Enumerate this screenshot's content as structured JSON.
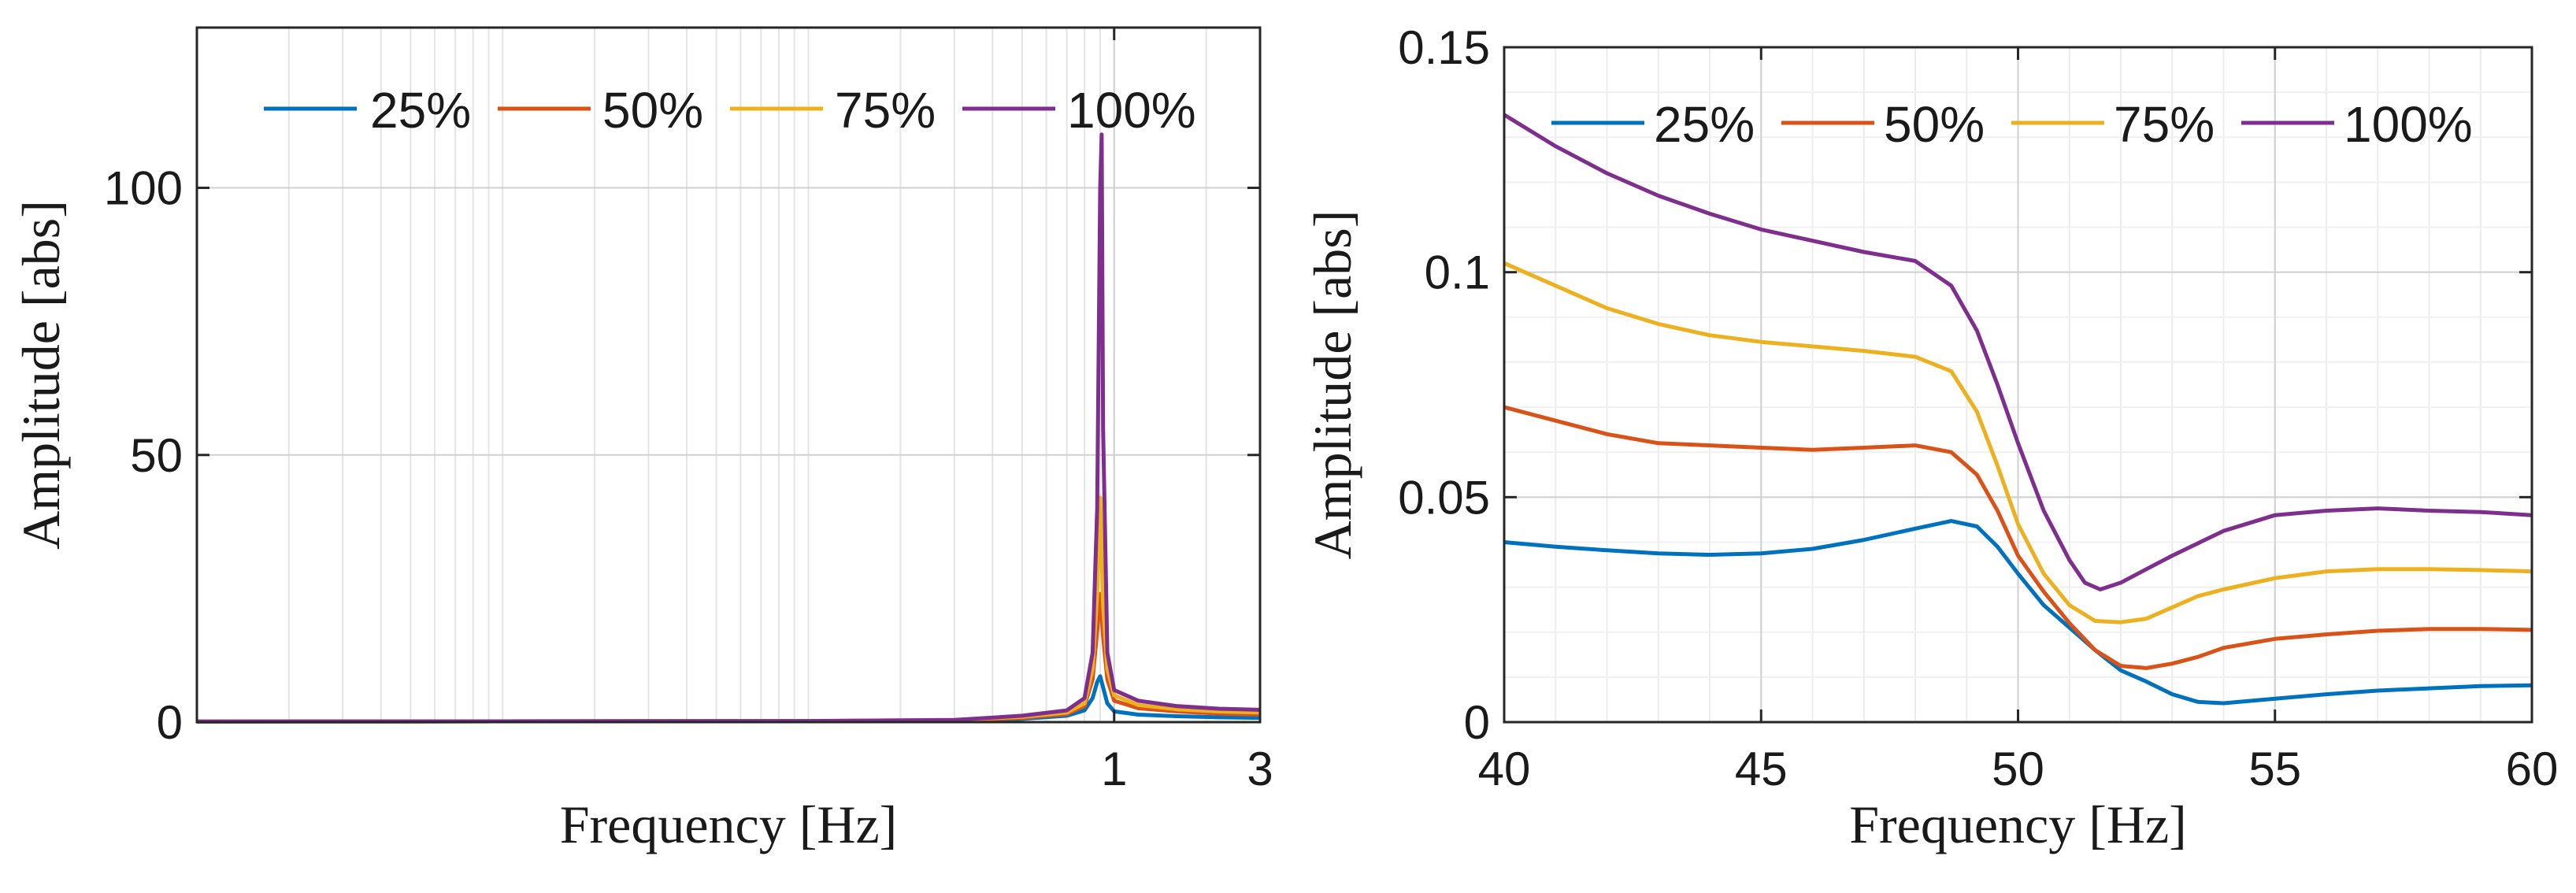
{
  "chart_data": [
    {
      "type": "line",
      "xscale": "log",
      "xlim": [
        0.001,
        3
      ],
      "ylim": [
        0,
        130
      ],
      "xticks": [
        1,
        3
      ],
      "xtick_labels": [
        "1",
        "3"
      ],
      "yticks": [
        0,
        50,
        100
      ],
      "ytick_labels": [
        "0",
        "50",
        "100"
      ],
      "xlabel": "Frequency [Hz]",
      "ylabel": "Amplitude [abs]",
      "grid": true,
      "legend_position": "top",
      "series": [
        {
          "name": "25%",
          "color": "#0072BD",
          "x": [
            0.001,
            0.1,
            0.3,
            0.5,
            0.7,
            0.8,
            0.85,
            0.88,
            0.9,
            0.92,
            0.95,
            1.0,
            1.2,
            1.6,
            2.2,
            3.0
          ],
          "y": [
            0.1,
            0.2,
            0.3,
            0.6,
            1.2,
            2.2,
            4.5,
            7.5,
            8.6,
            6.5,
            3.5,
            2.0,
            1.4,
            1.1,
            0.9,
            0.8
          ]
        },
        {
          "name": "50%",
          "color": "#D95319",
          "x": [
            0.001,
            0.1,
            0.3,
            0.5,
            0.7,
            0.8,
            0.85,
            0.88,
            0.9,
            0.92,
            0.95,
            1.0,
            1.2,
            1.6,
            2.2,
            3.0
          ],
          "y": [
            0.1,
            0.2,
            0.3,
            0.8,
            1.5,
            3.0,
            8.0,
            17.0,
            24.0,
            16.0,
            8.0,
            4.0,
            2.6,
            2.0,
            1.6,
            1.4
          ]
        },
        {
          "name": "75%",
          "color": "#EDB120",
          "x": [
            0.001,
            0.1,
            0.3,
            0.5,
            0.7,
            0.8,
            0.85,
            0.88,
            0.9,
            0.92,
            0.95,
            1.0,
            1.2,
            1.6,
            2.2,
            3.0
          ],
          "y": [
            0.1,
            0.2,
            0.4,
            1.0,
            1.8,
            3.5,
            10.0,
            24.0,
            42.0,
            22.0,
            10.0,
            5.0,
            3.2,
            2.4,
            2.0,
            1.8
          ]
        },
        {
          "name": "100%",
          "color": "#7E2F8E",
          "x": [
            0.001,
            0.1,
            0.3,
            0.5,
            0.7,
            0.8,
            0.85,
            0.88,
            0.9,
            0.91,
            0.92,
            0.95,
            1.0,
            1.2,
            1.6,
            2.2,
            3.0
          ],
          "y": [
            0.1,
            0.2,
            0.4,
            1.2,
            2.2,
            4.5,
            13.0,
            40.0,
            100.0,
            110.0,
            55.0,
            13.0,
            6.0,
            4.0,
            3.0,
            2.5,
            2.3
          ]
        }
      ]
    },
    {
      "type": "line",
      "xscale": "linear",
      "xlim": [
        40,
        60
      ],
      "ylim": [
        0,
        0.15
      ],
      "xticks": [
        40,
        45,
        50,
        55,
        60
      ],
      "xtick_labels": [
        "40",
        "45",
        "50",
        "55",
        "60"
      ],
      "yticks": [
        0,
        0.05,
        0.1,
        0.15
      ],
      "ytick_labels": [
        "0",
        "0.05",
        "0.1",
        "0.15"
      ],
      "xlabel": "Frequency [Hz]",
      "ylabel": "Amplitude [abs]",
      "grid": true,
      "legend_position": "top",
      "series": [
        {
          "name": "25%",
          "color": "#0072BD",
          "x": [
            40,
            41,
            42,
            43,
            44,
            45,
            46,
            47,
            48,
            48.7,
            49.2,
            49.6,
            50,
            50.5,
            51,
            51.5,
            52,
            52.5,
            53,
            53.5,
            54,
            55,
            56,
            57,
            58,
            59,
            60
          ],
          "y": [
            0.04,
            0.039,
            0.0382,
            0.0375,
            0.0372,
            0.0375,
            0.0385,
            0.0405,
            0.043,
            0.0447,
            0.0435,
            0.039,
            0.033,
            0.026,
            0.021,
            0.016,
            0.0115,
            0.009,
            0.0062,
            0.0045,
            0.0042,
            0.0052,
            0.0062,
            0.007,
            0.0075,
            0.008,
            0.0082
          ]
        },
        {
          "name": "50%",
          "color": "#D95319",
          "x": [
            40,
            41,
            42,
            43,
            44,
            45,
            46,
            47,
            48,
            48.7,
            49.2,
            49.6,
            50,
            50.5,
            51,
            51.5,
            52,
            52.5,
            53,
            53.5,
            54,
            55,
            56,
            57,
            58,
            59,
            60
          ],
          "y": [
            0.07,
            0.067,
            0.064,
            0.062,
            0.0615,
            0.061,
            0.0605,
            0.061,
            0.0615,
            0.06,
            0.055,
            0.047,
            0.037,
            0.029,
            0.022,
            0.016,
            0.0125,
            0.012,
            0.013,
            0.0145,
            0.0165,
            0.0185,
            0.0195,
            0.0203,
            0.0207,
            0.0207,
            0.0205
          ]
        },
        {
          "name": "75%",
          "color": "#EDB120",
          "x": [
            40,
            41,
            42,
            43,
            44,
            45,
            46,
            47,
            48,
            48.7,
            49.2,
            49.6,
            50,
            50.5,
            51,
            51.5,
            52,
            52.5,
            53,
            53.5,
            54,
            55,
            56,
            57,
            58,
            59,
            60
          ],
          "y": [
            0.102,
            0.097,
            0.092,
            0.0885,
            0.086,
            0.0845,
            0.0835,
            0.0825,
            0.0812,
            0.078,
            0.069,
            0.057,
            0.044,
            0.033,
            0.026,
            0.0225,
            0.0222,
            0.023,
            0.0255,
            0.028,
            0.0295,
            0.032,
            0.0335,
            0.034,
            0.034,
            0.0338,
            0.0335
          ]
        },
        {
          "name": "100%",
          "color": "#7E2F8E",
          "x": [
            40,
            41,
            42,
            43,
            44,
            45,
            46,
            47,
            48,
            48.7,
            49.2,
            49.6,
            50,
            50.5,
            51,
            51.3,
            51.6,
            52,
            52.5,
            53,
            54,
            55,
            56,
            57,
            58,
            59,
            60
          ],
          "y": [
            0.135,
            0.128,
            0.122,
            0.117,
            0.113,
            0.1095,
            0.107,
            0.1045,
            0.1025,
            0.097,
            0.087,
            0.075,
            0.062,
            0.047,
            0.036,
            0.031,
            0.0295,
            0.031,
            0.034,
            0.037,
            0.0425,
            0.046,
            0.047,
            0.0475,
            0.047,
            0.0467,
            0.046
          ]
        }
      ]
    }
  ]
}
